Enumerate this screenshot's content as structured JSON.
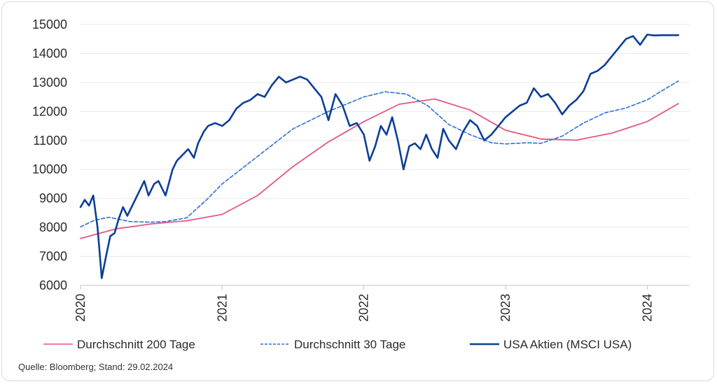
{
  "chart_data": {
    "type": "line",
    "title": "",
    "xlabel": "",
    "ylabel": "",
    "ylim": [
      6000,
      15000
    ],
    "yticks": [
      6000,
      7000,
      8000,
      9000,
      10000,
      11000,
      12000,
      13000,
      14000,
      15000
    ],
    "xlim": [
      2020.0,
      2024.3
    ],
    "xticks": [
      "2020",
      "2021",
      "2022",
      "2023",
      "2024"
    ],
    "grid": true,
    "legend_position": "bottom",
    "series": [
      {
        "name": "Durchschnitt 200 Tage",
        "color": "#e45784",
        "style": "solid",
        "x": [
          2020.0,
          2020.25,
          2020.5,
          2020.75,
          2021.0,
          2021.25,
          2021.5,
          2021.75,
          2022.0,
          2022.25,
          2022.5,
          2022.75,
          2023.0,
          2023.25,
          2023.5,
          2023.75,
          2024.0,
          2024.22
        ],
        "y": [
          7620,
          7950,
          8120,
          8230,
          8450,
          9100,
          10100,
          10950,
          11650,
          12250,
          12430,
          12050,
          11350,
          11050,
          11010,
          11250,
          11650,
          12270
        ]
      },
      {
        "name": "Durchschnitt 30 Tage",
        "color": "#2e6fd8",
        "style": "dashed",
        "x": [
          2020.0,
          2020.1,
          2020.2,
          2020.35,
          2020.5,
          2020.6,
          2020.75,
          2020.9,
          2021.0,
          2021.25,
          2021.5,
          2021.75,
          2022.0,
          2022.15,
          2022.3,
          2022.45,
          2022.6,
          2022.75,
          2022.9,
          2023.0,
          2023.15,
          2023.25,
          2023.4,
          2023.55,
          2023.7,
          2023.85,
          2024.0,
          2024.1,
          2024.22
        ],
        "y": [
          8020,
          8250,
          8350,
          8200,
          8180,
          8200,
          8330,
          9000,
          9500,
          10450,
          11400,
          12000,
          12500,
          12680,
          12600,
          12200,
          11550,
          11200,
          10920,
          10880,
          10920,
          10900,
          11150,
          11600,
          11950,
          12120,
          12400,
          12700,
          13050
        ]
      },
      {
        "name": "USA Aktien (MSCI USA)",
        "color": "#0b3f97",
        "style": "solid",
        "x": [
          2020.0,
          2020.03,
          2020.06,
          2020.09,
          2020.12,
          2020.15,
          2020.18,
          2020.21,
          2020.24,
          2020.27,
          2020.3,
          2020.33,
          2020.37,
          2020.41,
          2020.45,
          2020.48,
          2020.52,
          2020.55,
          2020.6,
          2020.65,
          2020.68,
          2020.72,
          2020.76,
          2020.8,
          2020.83,
          2020.87,
          2020.9,
          2020.95,
          2021.0,
          2021.05,
          2021.1,
          2021.15,
          2021.2,
          2021.25,
          2021.3,
          2021.35,
          2021.4,
          2021.45,
          2021.5,
          2021.55,
          2021.6,
          2021.65,
          2021.7,
          2021.75,
          2021.8,
          2021.85,
          2021.9,
          2021.95,
          2022.0,
          2022.04,
          2022.08,
          2022.12,
          2022.16,
          2022.2,
          2022.24,
          2022.28,
          2022.32,
          2022.36,
          2022.4,
          2022.44,
          2022.48,
          2022.52,
          2022.56,
          2022.6,
          2022.65,
          2022.7,
          2022.75,
          2022.8,
          2022.85,
          2022.9,
          2022.95,
          2023.0,
          2023.05,
          2023.1,
          2023.15,
          2023.2,
          2023.25,
          2023.3,
          2023.35,
          2023.4,
          2023.45,
          2023.5,
          2023.55,
          2023.6,
          2023.65,
          2023.7,
          2023.75,
          2023.8,
          2023.85,
          2023.9,
          2023.95,
          2024.0,
          2024.05,
          2024.1,
          2024.15,
          2024.2,
          2024.22
        ],
        "y": [
          8700,
          8950,
          8750,
          9100,
          8000,
          6250,
          7000,
          7700,
          7800,
          8300,
          8700,
          8400,
          8800,
          9200,
          9600,
          9100,
          9500,
          9600,
          9100,
          10000,
          10300,
          10500,
          10700,
          10400,
          10900,
          11300,
          11500,
          11600,
          11500,
          11700,
          12100,
          12300,
          12400,
          12600,
          12500,
          12900,
          13200,
          13000,
          13100,
          13200,
          13100,
          12800,
          12500,
          11700,
          12600,
          12200,
          11500,
          11600,
          11200,
          10300,
          10800,
          11500,
          11200,
          11800,
          11000,
          10000,
          10800,
          10900,
          10700,
          11200,
          10700,
          10400,
          11400,
          11000,
          10700,
          11300,
          11700,
          11500,
          11000,
          11200,
          11500,
          11800,
          12000,
          12200,
          12300,
          12800,
          12500,
          12600,
          12300,
          11900,
          12200,
          12400,
          12700,
          13300,
          13400,
          13600,
          13900,
          14200,
          14500,
          14600,
          14300,
          14650,
          14620,
          14630,
          14630,
          14630,
          14630
        ]
      }
    ]
  },
  "source_text": "Quelle: Bloomberg; Stand: 29.02.2024"
}
